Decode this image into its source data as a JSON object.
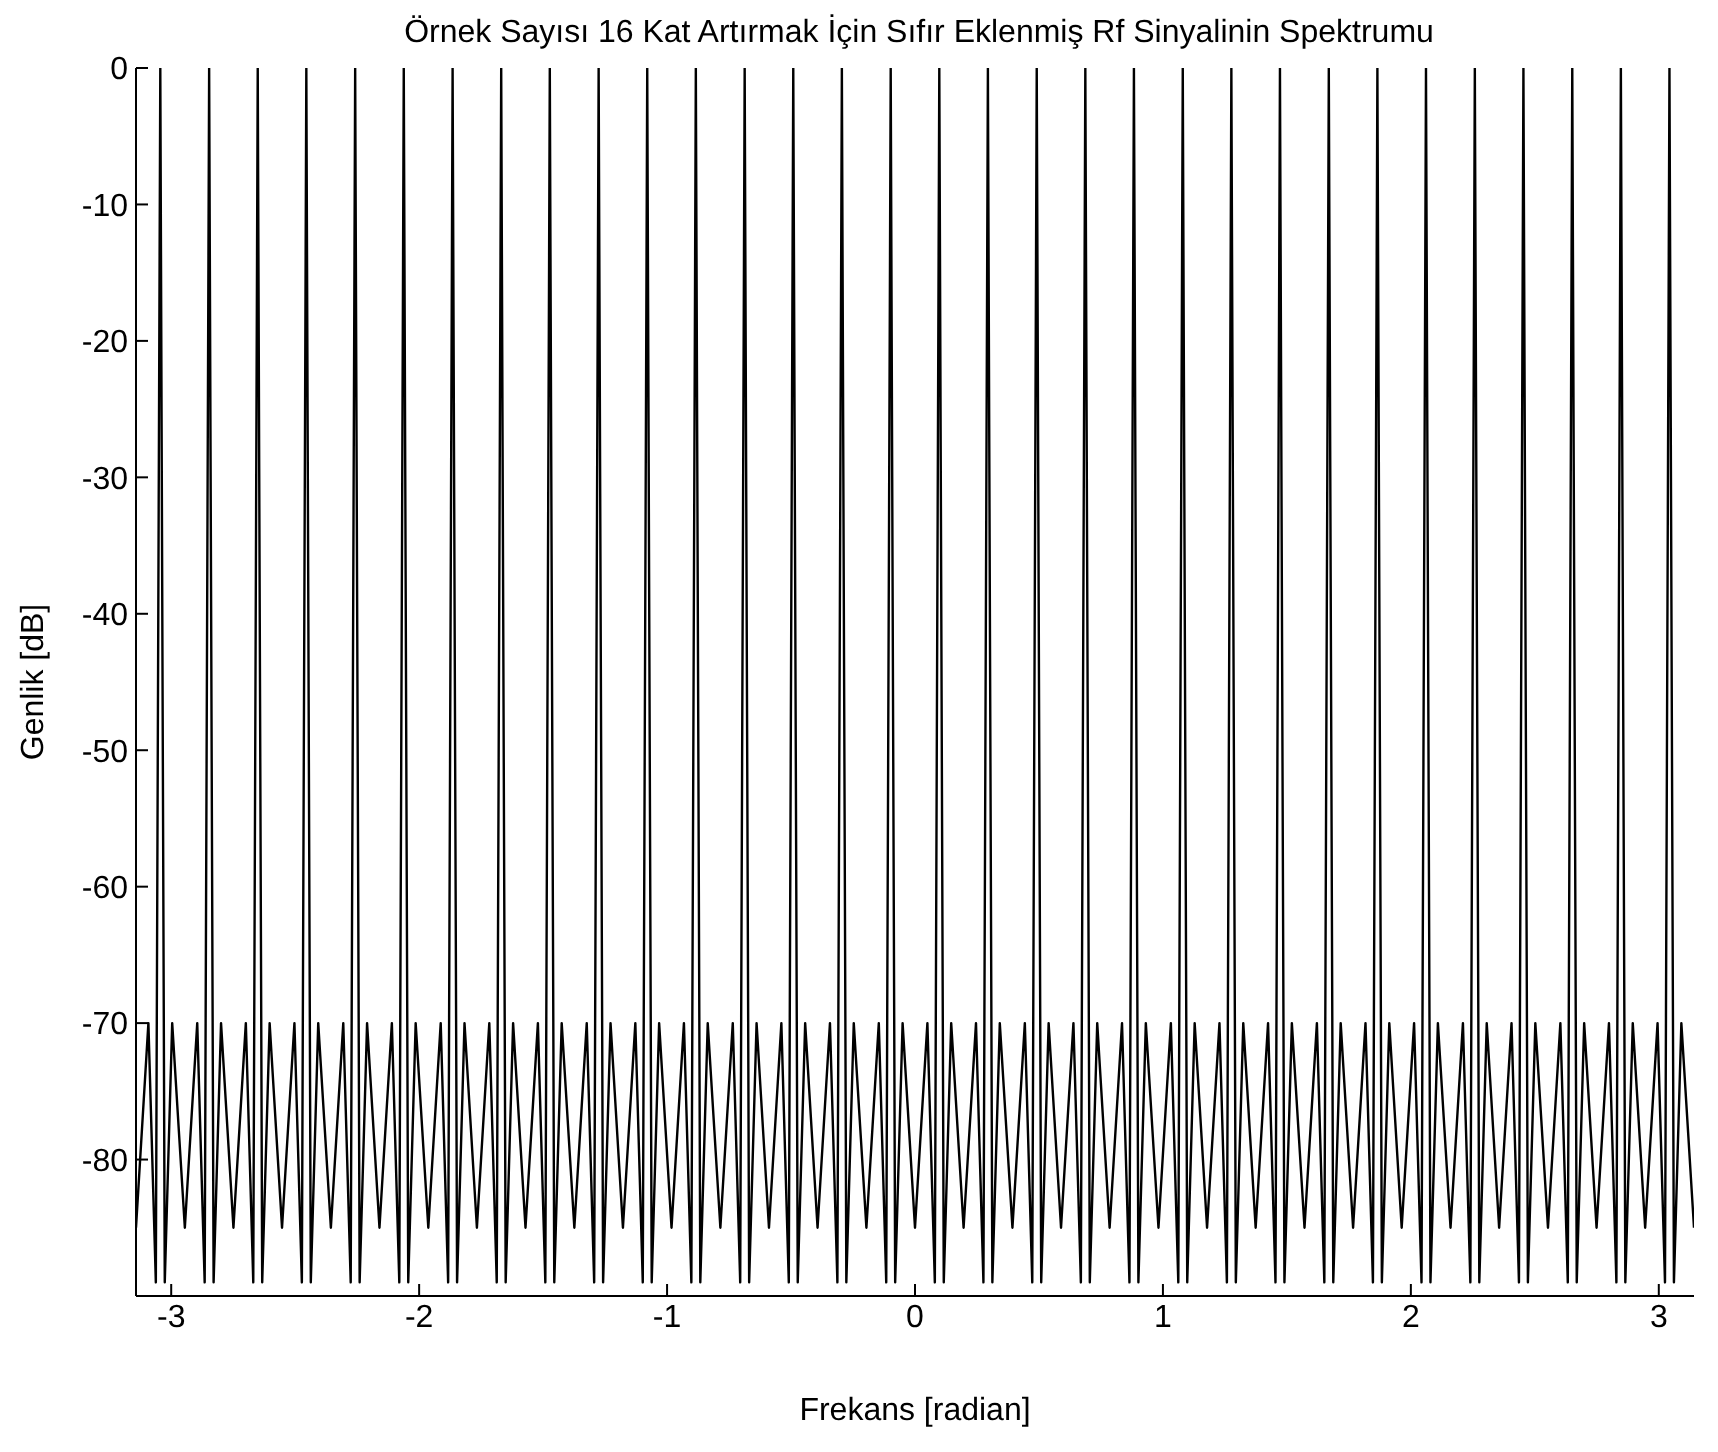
{
  "chart_data": {
    "type": "line",
    "title": "Örnek Sayısı 16 Kat Artırmak İçin Sıfır Eklenmiş Rf Sinyalinin Spektrumu",
    "xlabel": "Frekans [radian]",
    "ylabel": "Genlik [dB]",
    "xlim": [
      -3.142,
      3.142
    ],
    "xticks": [
      -3,
      -2,
      -1,
      0,
      1,
      2,
      3
    ],
    "ylim": [
      -90,
      0
    ],
    "yticks": [
      -80,
      -70,
      -60,
      -50,
      -40,
      -30,
      -20,
      -10,
      0
    ],
    "grid": false,
    "legend": false,
    "marker": "none",
    "line_style": "solid",
    "x": [
      -3.142,
      -3.092,
      -3.062,
      -3.044,
      -3.026,
      -2.996,
      -2.945,
      -2.895,
      -2.865,
      -2.847,
      -2.829,
      -2.799,
      -2.749,
      -2.699,
      -2.669,
      -2.651,
      -2.633,
      -2.603,
      -2.553,
      -2.503,
      -2.473,
      -2.455,
      -2.437,
      -2.407,
      -2.356,
      -2.306,
      -2.276,
      -2.258,
      -2.24,
      -2.21,
      -2.16,
      -2.11,
      -2.08,
      -2.062,
      -2.044,
      -2.014,
      -1.963,
      -1.913,
      -1.883,
      -1.865,
      -1.847,
      -1.817,
      -1.767,
      -1.717,
      -1.687,
      -1.669,
      -1.651,
      -1.621,
      -1.571,
      -1.521,
      -1.491,
      -1.473,
      -1.455,
      -1.425,
      -1.374,
      -1.324,
      -1.294,
      -1.276,
      -1.258,
      -1.228,
      -1.178,
      -1.128,
      -1.098,
      -1.08,
      -1.062,
      -1.032,
      -0.982,
      -0.932,
      -0.902,
      -0.884,
      -0.866,
      -0.836,
      -0.785,
      -0.735,
      -0.705,
      -0.687,
      -0.669,
      -0.639,
      -0.589,
      -0.539,
      -0.509,
      -0.491,
      -0.473,
      -0.443,
      -0.393,
      -0.343,
      -0.313,
      -0.295,
      -0.277,
      -0.247,
      -0.196,
      -0.146,
      -0.116,
      -0.098,
      -0.08,
      -0.05,
      0,
      0.05,
      0.08,
      0.098,
      0.116,
      0.146,
      0.196,
      0.246,
      0.276,
      0.294,
      0.312,
      0.342,
      0.393,
      0.443,
      0.473,
      0.491,
      0.509,
      0.539,
      0.589,
      0.639,
      0.669,
      0.687,
      0.705,
      0.735,
      0.785,
      0.835,
      0.865,
      0.883,
      0.901,
      0.931,
      0.982,
      1.032,
      1.062,
      1.08,
      1.098,
      1.128,
      1.178,
      1.228,
      1.258,
      1.276,
      1.294,
      1.324,
      1.374,
      1.424,
      1.454,
      1.472,
      1.49,
      1.52,
      1.571,
      1.621,
      1.651,
      1.669,
      1.687,
      1.717,
      1.767,
      1.817,
      1.847,
      1.865,
      1.883,
      1.913,
      1.963,
      2.013,
      2.043,
      2.061,
      2.079,
      2.109,
      2.16,
      2.21,
      2.24,
      2.258,
      2.276,
      2.306,
      2.356,
      2.406,
      2.436,
      2.454,
      2.472,
      2.502,
      2.553,
      2.603,
      2.633,
      2.651,
      2.669,
      2.699,
      2.749,
      2.799,
      2.829,
      2.847,
      2.865,
      2.895,
      2.945,
      2.995,
      3.025,
      3.043,
      3.061,
      3.091,
      3.142
    ],
    "series": [
      {
        "color": "#000000",
        "values": [
          -85,
          -70,
          -89,
          0,
          -89,
          -70,
          -85,
          -70,
          -89,
          0,
          -89,
          -70,
          -85,
          -70,
          -89,
          0,
          -89,
          -70,
          -85,
          -70,
          -89,
          0,
          -89,
          -70,
          -85,
          -70,
          -89,
          0,
          -89,
          -70,
          -85,
          -70,
          -89,
          0,
          -89,
          -70,
          -85,
          -70,
          -89,
          0,
          -89,
          -70,
          -85,
          -70,
          -89,
          0,
          -89,
          -70,
          -85,
          -70,
          -89,
          0,
          -89,
          -70,
          -85,
          -70,
          -89,
          0,
          -89,
          -70,
          -85,
          -70,
          -89,
          0,
          -89,
          -70,
          -85,
          -70,
          -89,
          0,
          -89,
          -70,
          -85,
          -70,
          -89,
          0,
          -89,
          -70,
          -85,
          -70,
          -89,
          0,
          -89,
          -70,
          -85,
          -70,
          -89,
          0,
          -89,
          -70,
          -85,
          -70,
          -89,
          0,
          -89,
          -70,
          -85,
          -70,
          -89,
          0,
          -89,
          -70,
          -85,
          -70,
          -89,
          0,
          -89,
          -70,
          -85,
          -70,
          -89,
          0,
          -89,
          -70,
          -85,
          -70,
          -89,
          0,
          -89,
          -70,
          -85,
          -70,
          -89,
          0,
          -89,
          -70,
          -85,
          -70,
          -89,
          0,
          -89,
          -70,
          -85,
          -70,
          -89,
          0,
          -89,
          -70,
          -85,
          -70,
          -89,
          0,
          -89,
          -70,
          -85,
          -70,
          -89,
          0,
          -89,
          -70,
          -85,
          -70,
          -89,
          0,
          -89,
          -70,
          -85,
          -70,
          -89,
          0,
          -89,
          -70,
          -85,
          -70,
          -89,
          0,
          -89,
          -70,
          -85,
          -70,
          -89,
          0,
          -89,
          -70,
          -85,
          -70,
          -89,
          0,
          -89,
          -70,
          -85,
          -70,
          -89,
          0,
          -89,
          -70,
          -85,
          -70,
          -89,
          0,
          -89,
          -70,
          -85
        ]
      }
    ]
  }
}
